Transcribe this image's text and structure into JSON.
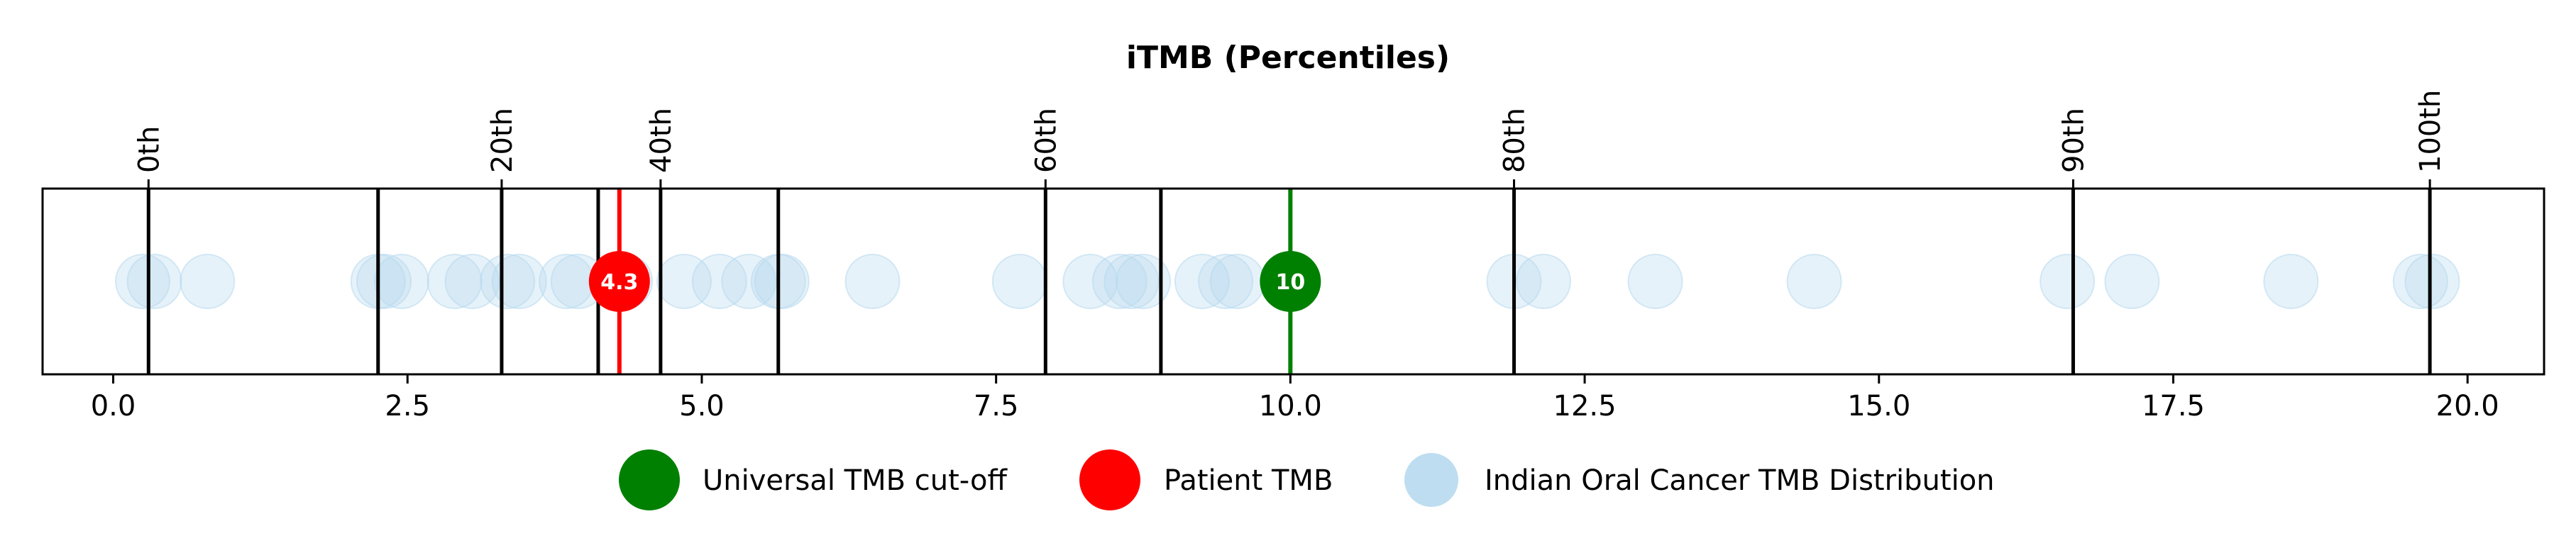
{
  "chart_data": {
    "type": "scatter",
    "title": "iTMB (Percentiles)",
    "xlabel": "",
    "ylabel": "",
    "xlim": [
      -0.6,
      20.65
    ],
    "x_ticks": [
      0.0,
      2.5,
      5.0,
      7.5,
      10.0,
      12.5,
      15.0,
      17.5,
      20.0
    ],
    "x_tick_labels": [
      "0.0",
      "2.5",
      "5.0",
      "7.5",
      "10.0",
      "12.5",
      "15.0",
      "17.5",
      "20.0"
    ],
    "percentile_labels": [
      {
        "label": "0th",
        "x": 0.3
      },
      {
        "label": "20th",
        "x": 3.3
      },
      {
        "label": "40th",
        "x": 4.65
      },
      {
        "label": "60th",
        "x": 7.92
      },
      {
        "label": "80th",
        "x": 11.9
      },
      {
        "label": "90th",
        "x": 16.65
      },
      {
        "label": "100th",
        "x": 19.68
      }
    ],
    "decile_lines": [
      0.3,
      2.25,
      3.3,
      4.12,
      4.65,
      5.65,
      7.92,
      8.9,
      11.9,
      16.65,
      19.68
    ],
    "distribution": {
      "name": "Indian Oral Cancer TMB Distribution",
      "color": "#b7d9ee",
      "values": [
        0.25,
        0.35,
        0.8,
        2.25,
        2.3,
        2.45,
        2.9,
        3.05,
        3.35,
        3.45,
        3.85,
        3.95,
        4.35,
        4.85,
        5.15,
        5.4,
        5.65,
        5.68,
        6.45,
        7.7,
        8.3,
        8.55,
        8.65,
        8.75,
        9.25,
        9.45,
        9.55,
        11.9,
        12.15,
        13.1,
        14.45,
        16.6,
        17.15,
        18.5,
        19.6,
        19.7
      ]
    },
    "universal_cutoff": {
      "name": "Universal TMB cut-off",
      "value": 10,
      "label": "10",
      "color": "#008000"
    },
    "patient": {
      "name": "Patient TMB",
      "value": 4.3,
      "label": "4.3",
      "color": "#ff0000"
    },
    "legend_position": "bottom-center"
  }
}
